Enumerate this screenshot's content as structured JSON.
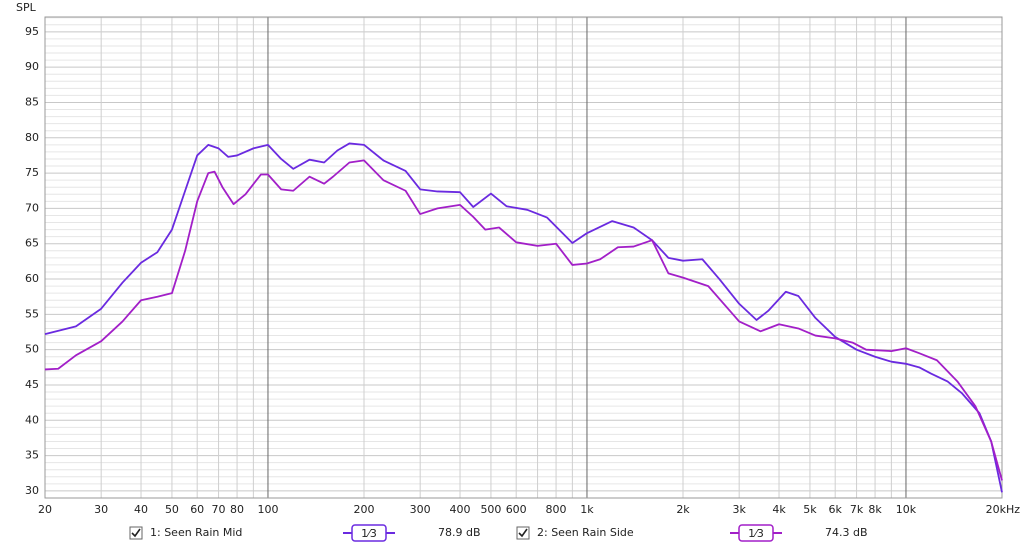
{
  "chart_data": {
    "type": "line",
    "y_label": "SPL",
    "log_x": true,
    "grid": true,
    "xlim": [
      20,
      20000
    ],
    "ylim": [
      29,
      97.1
    ],
    "xticks": [
      20,
      30,
      40,
      50,
      60,
      70,
      80,
      100,
      200,
      300,
      400,
      500,
      600,
      800,
      {
        "value": 1000,
        "label": "1k"
      },
      {
        "value": 2000,
        "label": "2k"
      },
      {
        "value": 3000,
        "label": "3k"
      },
      {
        "value": 4000,
        "label": "4k"
      },
      {
        "value": 5000,
        "label": "5k"
      },
      {
        "value": 6000,
        "label": "6k"
      },
      {
        "value": 7000,
        "label": "7k"
      },
      {
        "value": 8000,
        "label": "8k"
      },
      {
        "value": 10000,
        "label": "10k"
      },
      {
        "value": 20000,
        "label": "20kHz"
      }
    ],
    "yticks": [
      30,
      35,
      40,
      45,
      50,
      55,
      60,
      65,
      70,
      75,
      80,
      85,
      90,
      95
    ],
    "series": [
      {
        "name": "1: Seen Rain Mid",
        "color": "#6a2ae0",
        "smoothing": "1⁄3",
        "level": "78.9 dB",
        "x": [
          20,
          25,
          30,
          35,
          40,
          45,
          50,
          55,
          60,
          65,
          70,
          75,
          80,
          90,
          100,
          110,
          120,
          135,
          150,
          165,
          180,
          200,
          230,
          270,
          300,
          340,
          400,
          440,
          500,
          560,
          650,
          750,
          900,
          1000,
          1200,
          1400,
          1600,
          1800,
          2000,
          2300,
          2600,
          3000,
          3400,
          3700,
          4200,
          4600,
          5200,
          6000,
          7000,
          8000,
          9000,
          10000,
          11000,
          12000,
          13500,
          15000,
          17000,
          18500,
          20000
        ],
        "values": [
          52.2,
          53.3,
          55.8,
          59.5,
          62.3,
          63.8,
          67,
          72.5,
          77.5,
          79,
          78.5,
          77.3,
          77.5,
          78.5,
          79,
          77,
          75.6,
          76.9,
          76.5,
          78.2,
          79.2,
          79,
          76.8,
          75.3,
          72.7,
          72.4,
          72.3,
          70.2,
          72.1,
          70.3,
          69.8,
          68.7,
          65.1,
          66.5,
          68.2,
          67.3,
          65.5,
          63,
          62.6,
          62.8,
          60,
          56.5,
          54.2,
          55.5,
          58.2,
          57.6,
          54.5,
          51.8,
          50,
          49,
          48.3,
          48,
          47.5,
          46.6,
          45.5,
          43.8,
          41,
          37,
          29.8
        ]
      },
      {
        "name": "2: Seen Rain Side",
        "color": "#a21fc8",
        "smoothing": "1⁄3",
        "level": "74.3 dB",
        "x": [
          20,
          22,
          25,
          30,
          35,
          40,
          45,
          50,
          55,
          60,
          65,
          68,
          72,
          78,
          85,
          95,
          100,
          110,
          120,
          135,
          150,
          160,
          180,
          200,
          230,
          270,
          300,
          340,
          400,
          440,
          480,
          530,
          600,
          700,
          800,
          900,
          1000,
          1100,
          1250,
          1400,
          1600,
          1800,
          2000,
          2400,
          3000,
          3500,
          4000,
          4600,
          5200,
          6000,
          6800,
          7500,
          9000,
          10000,
          11000,
          12500,
          14500,
          16500,
          18500,
          20000
        ],
        "values": [
          47.2,
          47.3,
          49.2,
          51.2,
          54,
          57,
          57.5,
          58,
          64,
          71,
          75,
          75.2,
          73,
          70.6,
          72,
          74.8,
          74.8,
          72.7,
          72.5,
          74.5,
          73.5,
          74.5,
          76.5,
          76.8,
          74,
          72.5,
          69.2,
          70,
          70.5,
          68.8,
          67,
          67.3,
          65.2,
          64.7,
          65,
          62,
          62.2,
          62.8,
          64.5,
          64.6,
          65.5,
          60.8,
          60.2,
          59,
          54,
          52.6,
          53.6,
          53,
          52,
          51.6,
          51,
          50,
          49.8,
          50.2,
          49.5,
          48.5,
          45.5,
          42,
          37,
          31.5
        ]
      }
    ]
  }
}
